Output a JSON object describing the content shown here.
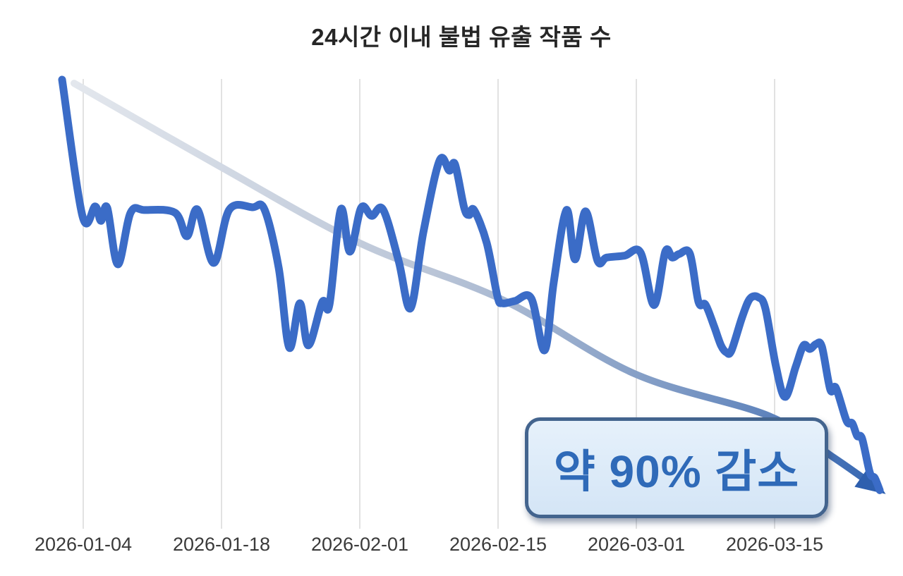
{
  "page": {
    "background": "#ffffff"
  },
  "chart_data": {
    "type": "line",
    "title": "24시간 이내 불법 유출 작품 수",
    "x_axis": {
      "tick_labels": [
        "2026-01-04",
        "2026-01-18",
        "2026-02-01",
        "2026-02-15",
        "2026-03-01",
        "2026-03-15"
      ],
      "tick_interval_days": 14,
      "day_zero_date": "2026-01-04",
      "gridlines": true,
      "gridline_color": "#d9d9d9",
      "label_color": "#3a3a3a"
    },
    "y_axis": {
      "visible": false,
      "note": "unlabeled axis; values are a relative index where the first data point = 100",
      "range": [
        0,
        105
      ]
    },
    "series": [
      {
        "name": "24시간 이내 불법 유출 작품 수",
        "color": "#3b6cc7",
        "points_day_value": [
          [
            -2.14,
            100
          ],
          [
            -0.07,
            69.8
          ],
          [
            1.21,
            72
          ],
          [
            1.79,
            68.8
          ],
          [
            2.43,
            71.7
          ],
          [
            3.5,
            59.2
          ],
          [
            4.79,
            70.6
          ],
          [
            6.21,
            71.2
          ],
          [
            9.29,
            70.6
          ],
          [
            10.5,
            65.4
          ],
          [
            11.57,
            71.3
          ],
          [
            13.21,
            59.5
          ],
          [
            14.79,
            71.3
          ],
          [
            17.14,
            71.8
          ],
          [
            18.36,
            71.3
          ],
          [
            19.79,
            58.4
          ],
          [
            20.86,
            40.8
          ],
          [
            21.93,
            50.6
          ],
          [
            22.79,
            41.3
          ],
          [
            24.21,
            50.9
          ],
          [
            24.93,
            50.3
          ],
          [
            26.07,
            71.3
          ],
          [
            27,
            62
          ],
          [
            28.14,
            71.7
          ],
          [
            29.21,
            69.9
          ],
          [
            30.36,
            71.3
          ],
          [
            31.93,
            60
          ],
          [
            33.14,
            49.5
          ],
          [
            34.43,
            66.2
          ],
          [
            36.07,
            82.1
          ],
          [
            37.07,
            79.9
          ],
          [
            37.64,
            81.3
          ],
          [
            38.57,
            71.7
          ],
          [
            39.07,
            70.1
          ],
          [
            39.57,
            71.2
          ],
          [
            40.86,
            63.9
          ],
          [
            41.93,
            52.2
          ],
          [
            42.43,
            50.6
          ],
          [
            43.71,
            51.1
          ],
          [
            45.36,
            51.7
          ],
          [
            46.71,
            40.2
          ],
          [
            47.64,
            55.3
          ],
          [
            48.93,
            71.2
          ],
          [
            49.79,
            60.3
          ],
          [
            50.86,
            70.9
          ],
          [
            52.07,
            60
          ],
          [
            53,
            60.7
          ],
          [
            54.79,
            61.1
          ],
          [
            56.43,
            61.8
          ],
          [
            57.79,
            50.2
          ],
          [
            58.93,
            62
          ],
          [
            59.64,
            60.7
          ],
          [
            60.36,
            61.5
          ],
          [
            61.43,
            61.5
          ],
          [
            62.29,
            50.9
          ],
          [
            63,
            50.3
          ],
          [
            63.86,
            45.6
          ],
          [
            64.57,
            41.3
          ],
          [
            65.14,
            39.7
          ],
          [
            65.64,
            40.2
          ],
          [
            66.71,
            47.5
          ],
          [
            67.5,
            51.6
          ],
          [
            68.36,
            51.9
          ],
          [
            69.07,
            49.4
          ],
          [
            70.14,
            36.6
          ],
          [
            71.07,
            29.9
          ],
          [
            72.14,
            36.6
          ],
          [
            72.93,
            41.3
          ],
          [
            73.57,
            40.5
          ],
          [
            74.21,
            41.6
          ],
          [
            74.79,
            41
          ],
          [
            75.64,
            31.5
          ],
          [
            76.21,
            31.9
          ],
          [
            77.29,
            24.6
          ],
          [
            77.86,
            24.1
          ],
          [
            78.36,
            21.3
          ],
          [
            78.86,
            20.7
          ],
          [
            79.64,
            13.2
          ],
          [
            80.14,
            12
          ],
          [
            80.64,
            9.3
          ]
        ]
      }
    ],
    "trend_arrow": {
      "name": "downward-trend-arrow",
      "points_day_value": [
        [
          -0.93,
          99.2
        ],
        [
          13.71,
          81
        ],
        [
          28,
          63.9
        ],
        [
          42.43,
          51.4
        ],
        [
          55.86,
          35
        ],
        [
          69.43,
          25.7
        ],
        [
          75.86,
          16.7
        ],
        [
          80.43,
          9.7
        ]
      ],
      "gradient_stops": [
        {
          "offset": 0,
          "color": "#e3e7ed"
        },
        {
          "offset": 0.45,
          "color": "#bac5d7"
        },
        {
          "offset": 0.75,
          "color": "#7d99c4"
        },
        {
          "offset": 1,
          "color": "#3566b2"
        }
      ],
      "arrowhead_color": "#2e5fae"
    },
    "annotation": {
      "text": "약 90% 감소",
      "box_fill": "#d9e8f8",
      "box_border": "#43648e",
      "text_color": "#2f6ab8"
    },
    "legend": {
      "visible": false
    }
  }
}
